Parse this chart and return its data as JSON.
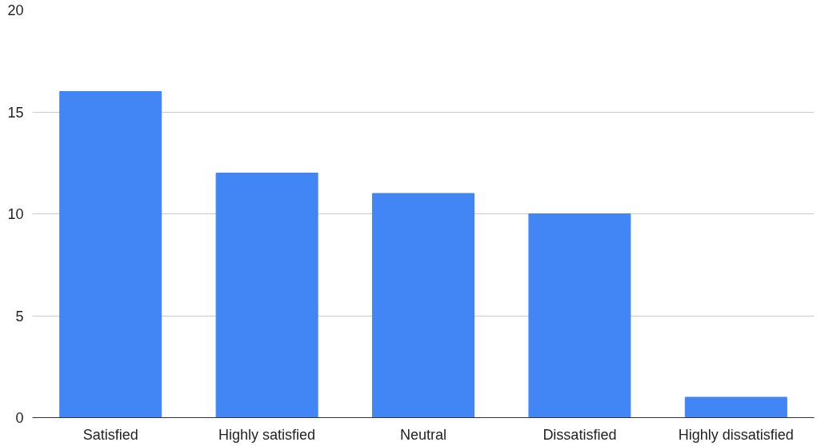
{
  "chart_data": {
    "type": "bar",
    "categories": [
      "Satisfied",
      "Highly satisfied",
      "Neutral",
      "Dissatisfied",
      "Highly dissatisfied"
    ],
    "values": [
      16,
      12,
      11,
      10,
      1
    ],
    "color": "#4285f4",
    "ylim": [
      0,
      20
    ],
    "yticks": [
      0,
      5,
      10,
      15,
      20
    ],
    "grid": "y"
  }
}
